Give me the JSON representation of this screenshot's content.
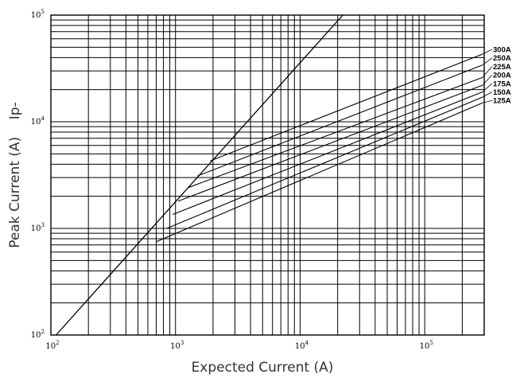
{
  "chart_data": {
    "type": "line",
    "title": "",
    "xlabel": "Expected Current (A)",
    "ylabel": "Peak Current (A)    Ip-",
    "x_scale": "log",
    "y_scale": "log",
    "xlim": [
      100,
      300000
    ],
    "ylim": [
      100,
      100000
    ],
    "grid": true,
    "x_ticks": [
      {
        "value": 100,
        "base": "10",
        "exp": "2"
      },
      {
        "value": 1000,
        "base": "10",
        "exp": "3"
      },
      {
        "value": 10000,
        "base": "10",
        "exp": "4"
      },
      {
        "value": 100000,
        "base": "10",
        "exp": "5"
      }
    ],
    "y_ticks": [
      {
        "value": 100,
        "base": "10",
        "exp": "2"
      },
      {
        "value": 1000,
        "base": "10",
        "exp": "3"
      },
      {
        "value": 10000,
        "base": "10",
        "exp": "4"
      },
      {
        "value": 100000,
        "base": "10",
        "exp": "5"
      }
    ],
    "reference_line": {
      "x": [
        110,
        22000
      ],
      "y": [
        100,
        100000
      ]
    },
    "series": [
      {
        "name": "300A",
        "x": [
          1900,
          290000
        ],
        "y": [
          4300,
          43000
        ]
      },
      {
        "name": "250A",
        "x": [
          1500,
          290000
        ],
        "y": [
          3100,
          34000
        ]
      },
      {
        "name": "225A",
        "x": [
          1250,
          290000
        ],
        "y": [
          2400,
          26000
        ]
      },
      {
        "name": "200A",
        "x": [
          1050,
          290000
        ],
        "y": [
          1800,
          22000
        ]
      },
      {
        "name": "175A",
        "x": [
          950,
          290000
        ],
        "y": [
          1350,
          19000
        ]
      },
      {
        "name": "150A",
        "x": [
          850,
          290000
        ],
        "y": [
          1000,
          17000
        ]
      },
      {
        "name": "125A",
        "x": [
          700,
          290000
        ],
        "y": [
          750,
          15000
        ]
      }
    ]
  }
}
